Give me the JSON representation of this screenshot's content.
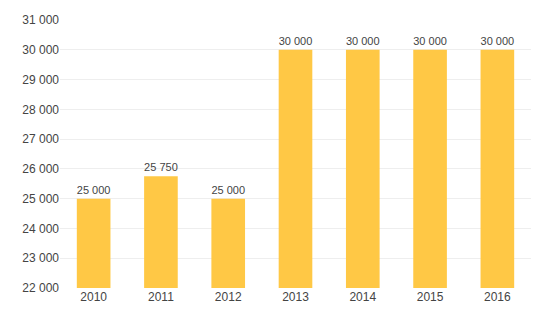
{
  "chart_data": {
    "type": "bar",
    "categories": [
      "2010",
      "2011",
      "2012",
      "2013",
      "2014",
      "2015",
      "2016"
    ],
    "values": [
      25000,
      25750,
      25000,
      30000,
      30000,
      30000,
      30000
    ],
    "value_labels": [
      "25 000",
      "25 750",
      "25 000",
      "30 000",
      "30 000",
      "30 000",
      "30 000"
    ],
    "color": "#FFC845",
    "ylim": [
      22000,
      31000
    ],
    "yticks": [
      {
        "value": 22000,
        "label": "22 000"
      },
      {
        "value": 23000,
        "label": "23 000"
      },
      {
        "value": 24000,
        "label": "24 000"
      },
      {
        "value": 25000,
        "label": "25 000"
      },
      {
        "value": 26000,
        "label": "26 000"
      },
      {
        "value": 27000,
        "label": "27 000"
      },
      {
        "value": 28000,
        "label": "28 000"
      },
      {
        "value": 29000,
        "label": "29 000"
      },
      {
        "value": 30000,
        "label": "30 000"
      },
      {
        "value": 31000,
        "label": "31 000"
      }
    ],
    "grid": true,
    "data_labels": true
  }
}
